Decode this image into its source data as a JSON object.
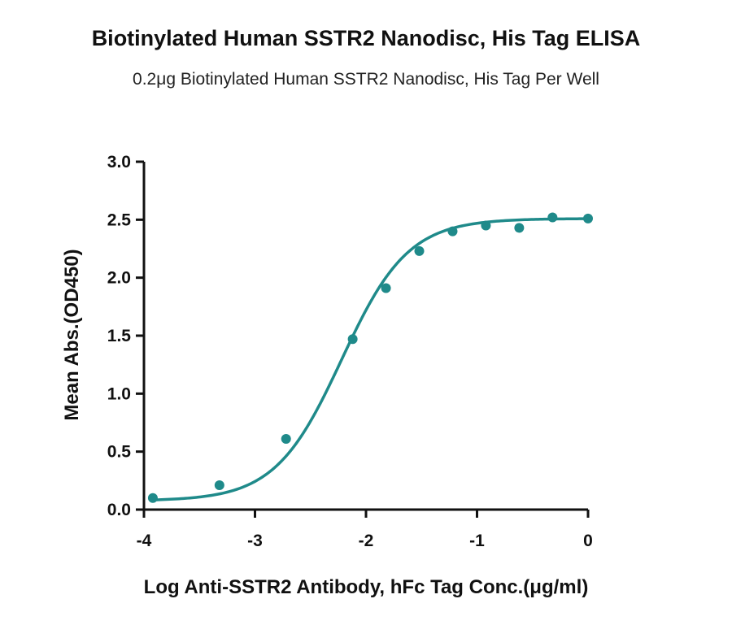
{
  "colors": {
    "series": "#1f8a8a",
    "axis": "#111111"
  },
  "chart_data": {
    "type": "scatter",
    "title": "Biotinylated Human SSTR2 Nanodisc, His Tag ELISA",
    "subtitle": "0.2μg Biotinylated Human SSTR2 Nanodisc, His Tag Per Well",
    "xlabel": "Log Anti-SSTR2 Antibody, hFc Tag Conc.(μg/ml)",
    "ylabel": "Mean Abs.(OD450)",
    "xlim": [
      -4,
      0
    ],
    "ylim": [
      0,
      3.0
    ],
    "xticks": [
      -4,
      -3,
      -2,
      -1,
      0
    ],
    "xtick_labels": [
      "-4",
      "-3",
      "-2",
      "-1",
      "0"
    ],
    "yticks": [
      0,
      0.5,
      1.0,
      1.5,
      2.0,
      2.5,
      3.0
    ],
    "ytick_labels": [
      "0.0",
      "0.5",
      "1.0",
      "1.5",
      "2.0",
      "2.5",
      "3.0"
    ],
    "grid": false,
    "fit": "four-parameter logistic curve",
    "series": [
      {
        "x": [
          -3.92,
          -3.32,
          -2.72,
          -2.12,
          -1.82,
          -1.52,
          -1.22,
          -0.92,
          -0.62,
          -0.32,
          0.0
        ],
        "y": [
          0.1,
          0.21,
          0.61,
          1.47,
          1.91,
          2.23,
          2.4,
          2.45,
          2.43,
          2.52,
          2.51
        ]
      }
    ]
  }
}
